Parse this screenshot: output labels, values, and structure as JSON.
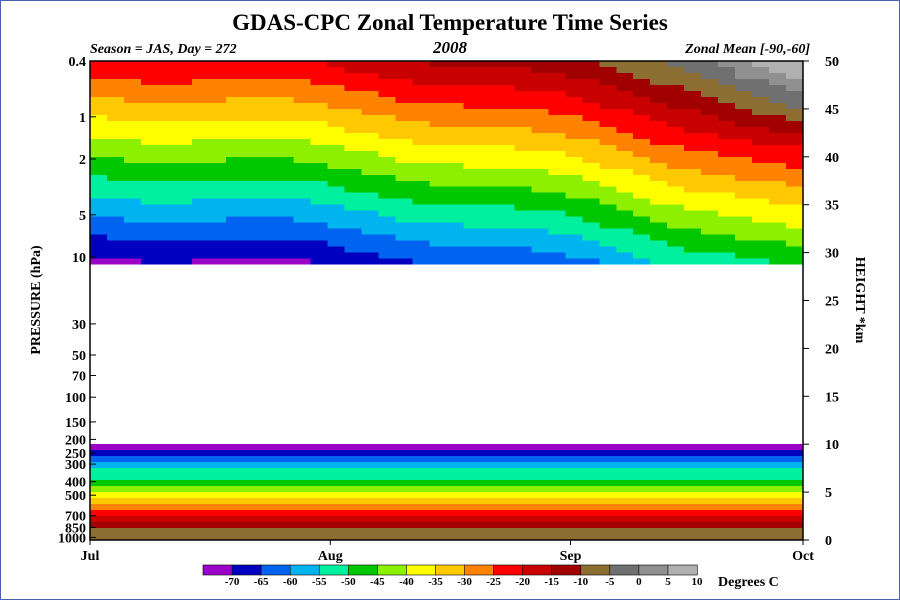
{
  "chart_data": {
    "type": "contour",
    "title": "GDAS-CPC Zonal Temperature Time Series",
    "subtitle_left": "Season = JAS, Day = 272",
    "subtitle_center": "2008",
    "subtitle_right": "Zonal Mean [-90,-60]",
    "ylabel_left": "PRESSURE (hPa)",
    "ylabel_right": "HEIGHT *km",
    "x_ticks": [
      {
        "label": "Jul",
        "day": 0
      },
      {
        "label": "Aug",
        "day": 31
      },
      {
        "label": "Sep",
        "day": 62
      },
      {
        "label": "Oct",
        "day": 92
      }
    ],
    "pressure_ticks": [
      "0.4",
      "1",
      "2",
      "5",
      "10",
      "30",
      "50",
      "70",
      "100",
      "150",
      "200",
      "250",
      "300",
      "400",
      "500",
      "700",
      "850",
      "1000"
    ],
    "pressure_values": [
      0.4,
      1,
      2,
      5,
      10,
      30,
      50,
      70,
      100,
      150,
      200,
      250,
      300,
      400,
      500,
      700,
      850,
      1000
    ],
    "height_ticks": [
      "0",
      "5",
      "10",
      "15",
      "20",
      "25",
      "30",
      "35",
      "40",
      "45",
      "50"
    ],
    "height_range_km": [
      0,
      50
    ],
    "colorbar": {
      "label": "Degrees C",
      "ticks": [
        "-70",
        "-65",
        "-60",
        "-55",
        "-50",
        "-45",
        "-40",
        "-35",
        "-30",
        "-25",
        "-20",
        "-15",
        "-10",
        "-5",
        "0",
        "5",
        "10"
      ],
      "colors": [
        "#9b00c8",
        "#0000c0",
        "#0064f0",
        "#00b4f0",
        "#00f0a0",
        "#00c800",
        "#8cf000",
        "#ffff00",
        "#ffc800",
        "#ff8200",
        "#ff0000",
        "#c80000",
        "#a00000",
        "#8c6e32",
        "#707070",
        "#909090",
        "#b0b0b0"
      ]
    },
    "gap_color": "#ffffff"
  }
}
